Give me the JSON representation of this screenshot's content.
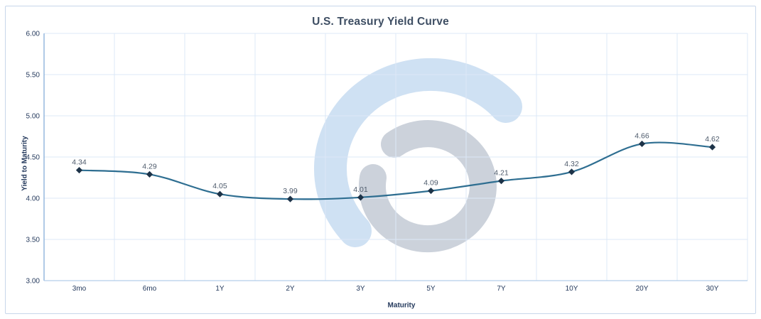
{
  "chart_data": {
    "type": "line",
    "title": "U.S. Treasury Yield Curve",
    "xlabel": "Maturity",
    "ylabel": "Yield to Maturity",
    "categories": [
      "3mo",
      "6mo",
      "1Y",
      "2Y",
      "3Y",
      "5Y",
      "7Y",
      "10Y",
      "20Y",
      "30Y"
    ],
    "series": [
      {
        "name": "Yield to Maturity",
        "values": [
          4.34,
          4.29,
          4.05,
          3.99,
          4.01,
          4.09,
          4.21,
          4.32,
          4.66,
          4.62
        ],
        "data_labels": [
          "4.34",
          "4.29",
          "4.05",
          "3.99",
          "4.01",
          "4.09",
          "4.21",
          "4.32",
          "4.66",
          "4.62"
        ]
      }
    ],
    "ylim": [
      3.0,
      6.0
    ],
    "y_tick_step": 0.5,
    "y_tick_labels": [
      "3.00",
      "3.50",
      "4.00",
      "4.50",
      "5.00",
      "5.50",
      "6.00"
    ],
    "grid": true,
    "legend": "none",
    "line_style": "smooth",
    "marker": "diamond"
  },
  "style": {
    "title_color": "#3e4e63",
    "axis_title_color": "#24395c",
    "tick_label_color": "#24395c",
    "data_label_color": "#4d5a6b",
    "line_color": "#2e6e91",
    "marker_color": "#1d3348",
    "grid_color": "#dce8f7",
    "y_axis_color": "#85aed9",
    "x_axis_color": "#b3cdea",
    "watermark_blue": "#cfe1f3",
    "watermark_gray": "#ccd2db",
    "card_border_color": "#c7d6ea",
    "background_color": "#ffffff"
  }
}
